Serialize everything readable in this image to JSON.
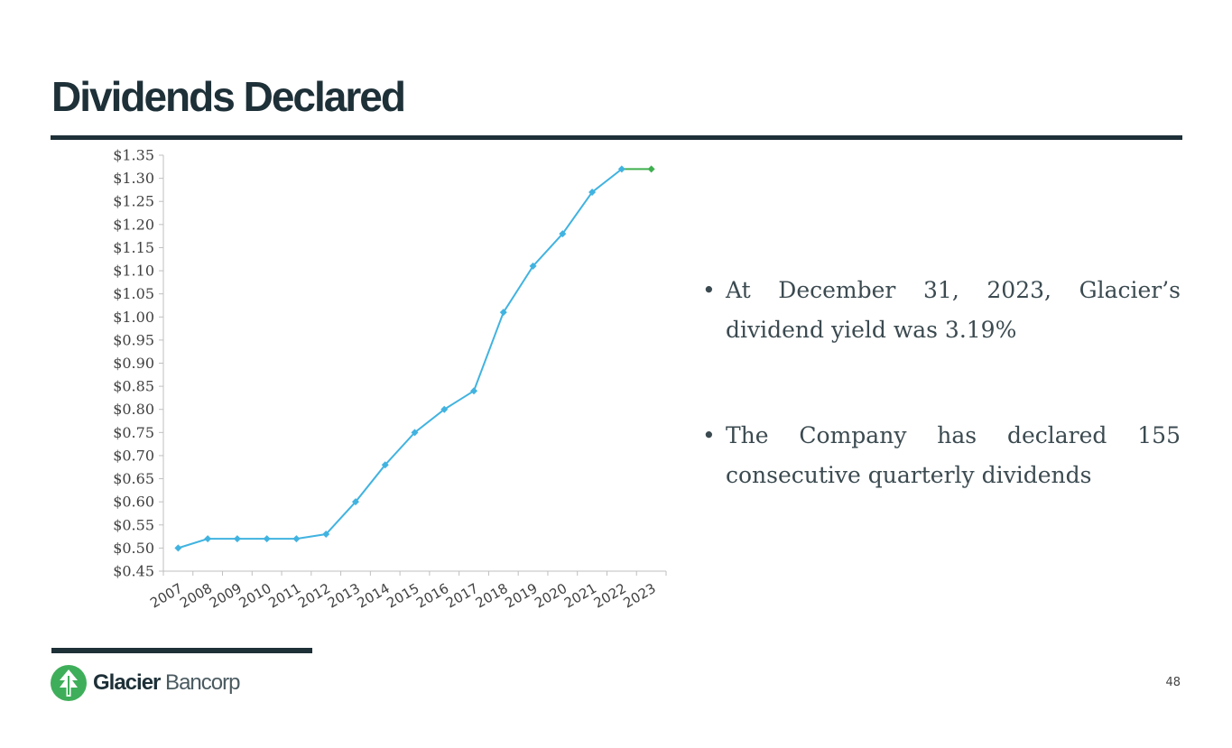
{
  "slide": {
    "title": "Dividends Declared",
    "page_number": "48",
    "logo": {
      "name_bold": "Glacier",
      "name_light": " Bancorp",
      "icon": "glacier-tree-icon",
      "color": "#3fae5a"
    }
  },
  "bullets": [
    "At December 31, 2023, Glacier’s dividend yield was 3.19%",
    "The Company has declared 155 consecutive quarterly dividends"
  ],
  "chart_data": {
    "type": "line",
    "categories": [
      "2007",
      "2008",
      "2009",
      "2010",
      "2011",
      "2012",
      "2013",
      "2014",
      "2015",
      "2016",
      "2017",
      "2018",
      "2019",
      "2020",
      "2021",
      "2022",
      "2023"
    ],
    "values": [
      0.5,
      0.52,
      0.52,
      0.52,
      0.52,
      0.53,
      0.6,
      0.68,
      0.75,
      0.8,
      0.84,
      1.01,
      1.11,
      1.18,
      1.27,
      1.32,
      1.32
    ],
    "y_ticks": [
      "$0.45",
      "$0.50",
      "$0.55",
      "$0.60",
      "$0.65",
      "$0.70",
      "$0.75",
      "$0.80",
      "$0.85",
      "$0.90",
      "$0.95",
      "$1.00",
      "$1.05",
      "$1.10",
      "$1.15",
      "$1.20",
      "$1.25",
      "$1.30",
      "$1.35"
    ],
    "ylim": [
      0.45,
      1.35
    ],
    "y_step": 0.05,
    "grid": false,
    "title": "",
    "xlabel": "",
    "ylabel": "",
    "line_color": "#41b3e0",
    "last_segment_color": "#3fb04f"
  }
}
